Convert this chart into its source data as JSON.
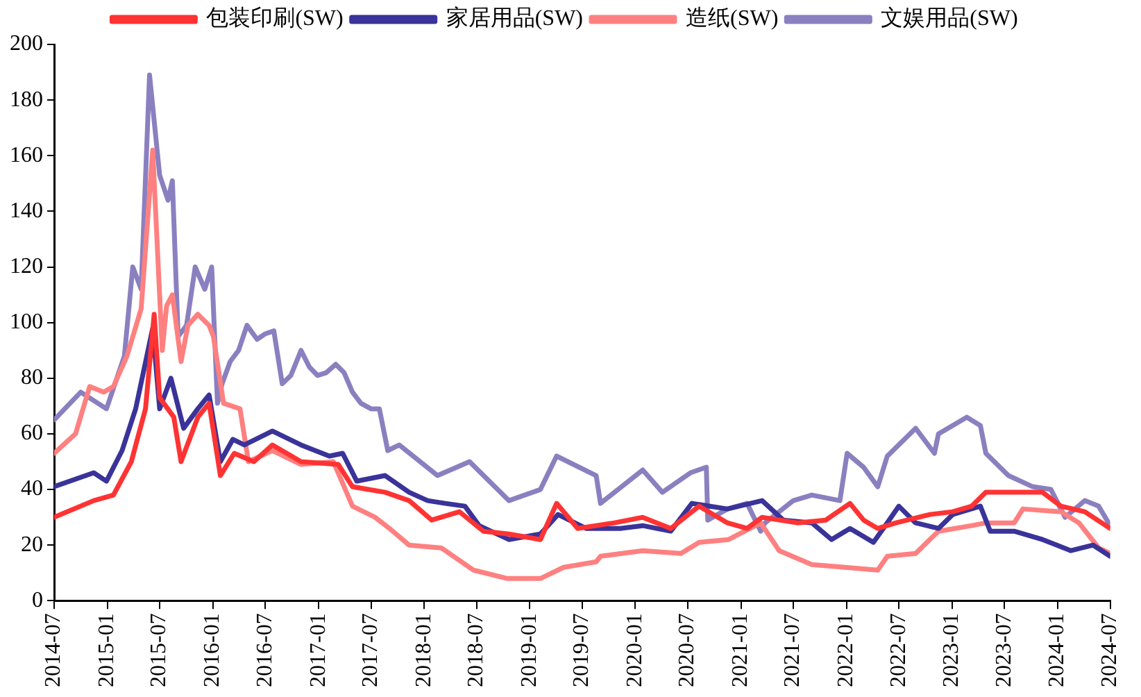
{
  "chart_data": {
    "type": "line",
    "legend": "top",
    "grid": false,
    "marker": "none",
    "line_style": "solid",
    "ylim": [
      0,
      200
    ],
    "yticks": [
      0,
      20,
      40,
      60,
      80,
      100,
      120,
      140,
      160,
      180,
      200
    ],
    "xlim": [
      "2014-07",
      "2024-07"
    ],
    "xticks": [
      "2014-07",
      "2015-01",
      "2015-07",
      "2016-01",
      "2016-07",
      "2017-01",
      "2017-07",
      "2018-01",
      "2018-07",
      "2019-01",
      "2019-07",
      "2020-01",
      "2020-07",
      "2021-01",
      "2021-07",
      "2022-01",
      "2022-07",
      "2023-01",
      "2023-07",
      "2024-01",
      "2024-07"
    ],
    "series": [
      {
        "name": "包装印刷(SW)",
        "color": "#ff3333",
        "x": [
          "2014-07-01",
          "2014-11-15",
          "2015-01-22",
          "2015-03-25",
          "2015-05-13",
          "2015-06-12",
          "2015-07-01",
          "2015-08-19",
          "2015-09-13",
          "2015-11-10",
          "2015-12-19",
          "2016-01-27",
          "2016-03-15",
          "2016-05-22",
          "2016-07-25",
          "2016-11-01",
          "2017-03-10",
          "2017-04-28",
          "2017-08-19",
          "2017-11-10",
          "2018-01-27",
          "2018-05-03",
          "2018-07-25",
          "2018-10-21",
          "2019-02-07",
          "2019-04-04",
          "2019-06-16",
          "2019-10-21",
          "2020-01-27",
          "2020-05-03",
          "2020-08-09",
          "2020-11-15",
          "2021-01-22",
          "2021-03-15",
          "2021-07-15",
          "2021-10-21",
          "2022-01-13",
          "2022-03-01",
          "2022-04-19",
          "2022-06-21",
          "2022-10-16",
          "2023-01-03",
          "2023-03-10",
          "2023-04-28",
          "2023-08-04",
          "2023-11-10",
          "2024-01-13",
          "2024-04-04",
          "2024-07-01"
        ],
        "values": [
          30,
          36,
          38,
          50,
          69,
          103,
          73,
          66,
          50,
          66,
          71,
          45,
          53,
          50,
          56,
          50,
          49,
          41,
          39,
          36,
          29,
          32,
          25,
          24,
          22,
          35,
          26,
          28,
          30,
          26,
          34,
          28,
          26,
          30,
          28,
          29,
          35,
          29,
          26,
          28,
          31,
          32,
          34,
          39,
          39,
          39,
          34,
          32,
          26
        ]
      },
      {
        "name": "家居用品(SW)",
        "color": "#3a3399",
        "x": [
          "2014-07-01",
          "2014-11-15",
          "2014-12-29",
          "2015-02-21",
          "2015-04-09",
          "2015-06-07",
          "2015-07-01",
          "2015-08-09",
          "2015-09-22",
          "2015-11-10",
          "2015-12-19",
          "2016-01-27",
          "2016-03-10",
          "2016-04-19",
          "2016-07-25",
          "2016-11-01",
          "2017-02-07",
          "2017-03-25",
          "2017-05-13",
          "2017-08-19",
          "2017-11-10",
          "2018-01-13",
          "2018-03-15",
          "2018-05-22",
          "2018-07-10",
          "2018-10-21",
          "2019-02-07",
          "2019-04-09",
          "2019-07-15",
          "2019-11-10",
          "2020-01-27",
          "2020-05-03",
          "2020-07-15",
          "2020-11-15",
          "2021-03-15",
          "2021-05-27",
          "2021-09-03",
          "2021-11-10",
          "2022-01-13",
          "2022-04-04",
          "2022-05-22",
          "2022-07-01",
          "2022-08-28",
          "2022-11-15",
          "2023-01-03",
          "2023-04-09",
          "2023-05-13",
          "2023-08-04",
          "2023-11-10",
          "2024-02-16",
          "2024-05-03",
          "2024-07-01"
        ],
        "values": [
          41,
          46,
          43,
          54,
          69,
          98,
          69,
          80,
          62,
          69,
          74,
          50,
          58,
          56,
          61,
          56,
          52,
          53,
          43,
          45,
          39,
          36,
          35,
          34,
          27,
          22,
          24,
          31,
          26,
          26,
          27,
          25,
          35,
          33,
          36,
          29,
          28,
          22,
          26,
          21,
          28,
          34,
          28,
          26,
          31,
          34,
          25,
          25,
          22,
          18,
          20,
          16
        ]
      },
      {
        "name": "造纸(SW)",
        "color": "#ff8080",
        "x": [
          "2014-07-01",
          "2014-09-13",
          "2014-11-01",
          "2014-12-19",
          "2015-01-22",
          "2015-03-10",
          "2015-04-28",
          "2015-06-07",
          "2015-07-10",
          "2015-07-25",
          "2015-08-14",
          "2015-09-13",
          "2015-10-07",
          "2015-11-10",
          "2015-12-19",
          "2016-01-03",
          "2016-02-07",
          "2016-04-04",
          "2016-05-03",
          "2016-07-25",
          "2016-11-01",
          "2017-02-21",
          "2017-04-28",
          "2017-07-15",
          "2017-09-03",
          "2017-11-10",
          "2018-03-01",
          "2018-06-21",
          "2018-10-16",
          "2019-02-07",
          "2019-04-28",
          "2019-08-19",
          "2019-09-03",
          "2020-01-27",
          "2020-06-07",
          "2020-08-09",
          "2020-11-19",
          "2021-03-10",
          "2021-05-13",
          "2021-09-03",
          "2021-12-28",
          "2022-04-19",
          "2022-05-22",
          "2022-08-28",
          "2022-10-16",
          "2022-11-15",
          "2023-03-10",
          "2023-04-28",
          "2023-08-04",
          "2023-09-03",
          "2024-01-13",
          "2024-03-15",
          "2024-05-22",
          "2024-07-01"
        ],
        "values": [
          53,
          60,
          77,
          75,
          77,
          88,
          105,
          162,
          90,
          106,
          110,
          86,
          99,
          103,
          99,
          95,
          71,
          69,
          50,
          54,
          49,
          50,
          34,
          30,
          26,
          20,
          19,
          11,
          8,
          8,
          12,
          14,
          16,
          18,
          17,
          21,
          22,
          28,
          18,
          13,
          12,
          11,
          16,
          17,
          22,
          25,
          27,
          28,
          28,
          33,
          32,
          28,
          19,
          17
        ]
      },
      {
        "name": "文娱用品(SW)",
        "color": "#8a80c0",
        "x": [
          "2014-07-01",
          "2014-10-01",
          "2014-12-29",
          "2015-03-01",
          "2015-03-30",
          "2015-04-28",
          "2015-05-27",
          "2015-07-01",
          "2015-07-30",
          "2015-08-14",
          "2015-09-03",
          "2015-10-02",
          "2015-11-01",
          "2015-12-04",
          "2015-12-28",
          "2016-01-17",
          "2016-02-02",
          "2016-03-01",
          "2016-03-30",
          "2016-04-28",
          "2016-06-02",
          "2016-07-01",
          "2016-07-30",
          "2016-08-28",
          "2016-09-27",
          "2016-11-01",
          "2016-11-30",
          "2016-12-28",
          "2017-01-27",
          "2017-03-01",
          "2017-03-30",
          "2017-04-28",
          "2017-05-27",
          "2017-07-01",
          "2017-07-30",
          "2017-08-28",
          "2017-10-07",
          "2018-02-16",
          "2018-06-07",
          "2018-10-21",
          "2019-02-07",
          "2019-04-04",
          "2019-08-19",
          "2019-09-03",
          "2020-01-27",
          "2020-04-04",
          "2020-07-10",
          "2020-09-03",
          "2020-09-08",
          "2020-11-15",
          "2021-01-22",
          "2021-03-10",
          "2021-03-25",
          "2021-07-01",
          "2021-09-03",
          "2021-12-09",
          "2022-01-03",
          "2022-03-01",
          "2022-04-19",
          "2022-05-22",
          "2022-08-28",
          "2022-11-01",
          "2022-11-15",
          "2023-02-21",
          "2023-04-09",
          "2023-04-28",
          "2023-07-15",
          "2023-10-07",
          "2023-12-09",
          "2024-01-27",
          "2024-04-04",
          "2024-05-22",
          "2024-07-01"
        ],
        "values": [
          65,
          75,
          69,
          88,
          120,
          112,
          189,
          153,
          144,
          151,
          95,
          99,
          120,
          112,
          120,
          71,
          78,
          86,
          90,
          99,
          94,
          96,
          97,
          78,
          81,
          90,
          84,
          81,
          82,
          85,
          82,
          75,
          71,
          69,
          69,
          54,
          56,
          45,
          50,
          36,
          40,
          52,
          45,
          35,
          47,
          39,
          46,
          48,
          29,
          33,
          35,
          25,
          28,
          36,
          38,
          36,
          53,
          48,
          41,
          52,
          62,
          53,
          60,
          66,
          63,
          53,
          45,
          41,
          40,
          30,
          36,
          34,
          27
        ]
      }
    ]
  }
}
